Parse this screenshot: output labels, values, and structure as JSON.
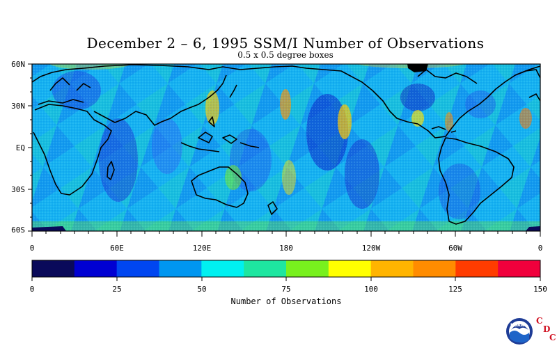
{
  "header": {
    "title": "December 2 – 6, 1995 SSM/I Number of Observations",
    "subtitle": "0.5 x 0.5 degree boxes"
  },
  "map": {
    "lat_labels": [
      "60N",
      "30N",
      "EQ",
      "30S",
      "60S"
    ],
    "lon_labels": [
      "0",
      "60E",
      "120E",
      "180",
      "120W",
      "60W",
      "0"
    ],
    "coast_color": "#000000"
  },
  "colorbar": {
    "title": "Number of Observations",
    "tick_labels": [
      "0",
      "25",
      "50",
      "75",
      "100",
      "125",
      "150"
    ],
    "colors": [
      "#0a0a5a",
      "#0000d2",
      "#0046f0",
      "#0096f0",
      "#00f0f0",
      "#1ee6a0",
      "#78f01e",
      "#ffff00",
      "#ffb400",
      "#ff8c00",
      "#ff3c00",
      "#f0003c"
    ]
  },
  "logo": {
    "agency": "NOAA",
    "letters": [
      "C",
      "D",
      "C"
    ]
  }
}
